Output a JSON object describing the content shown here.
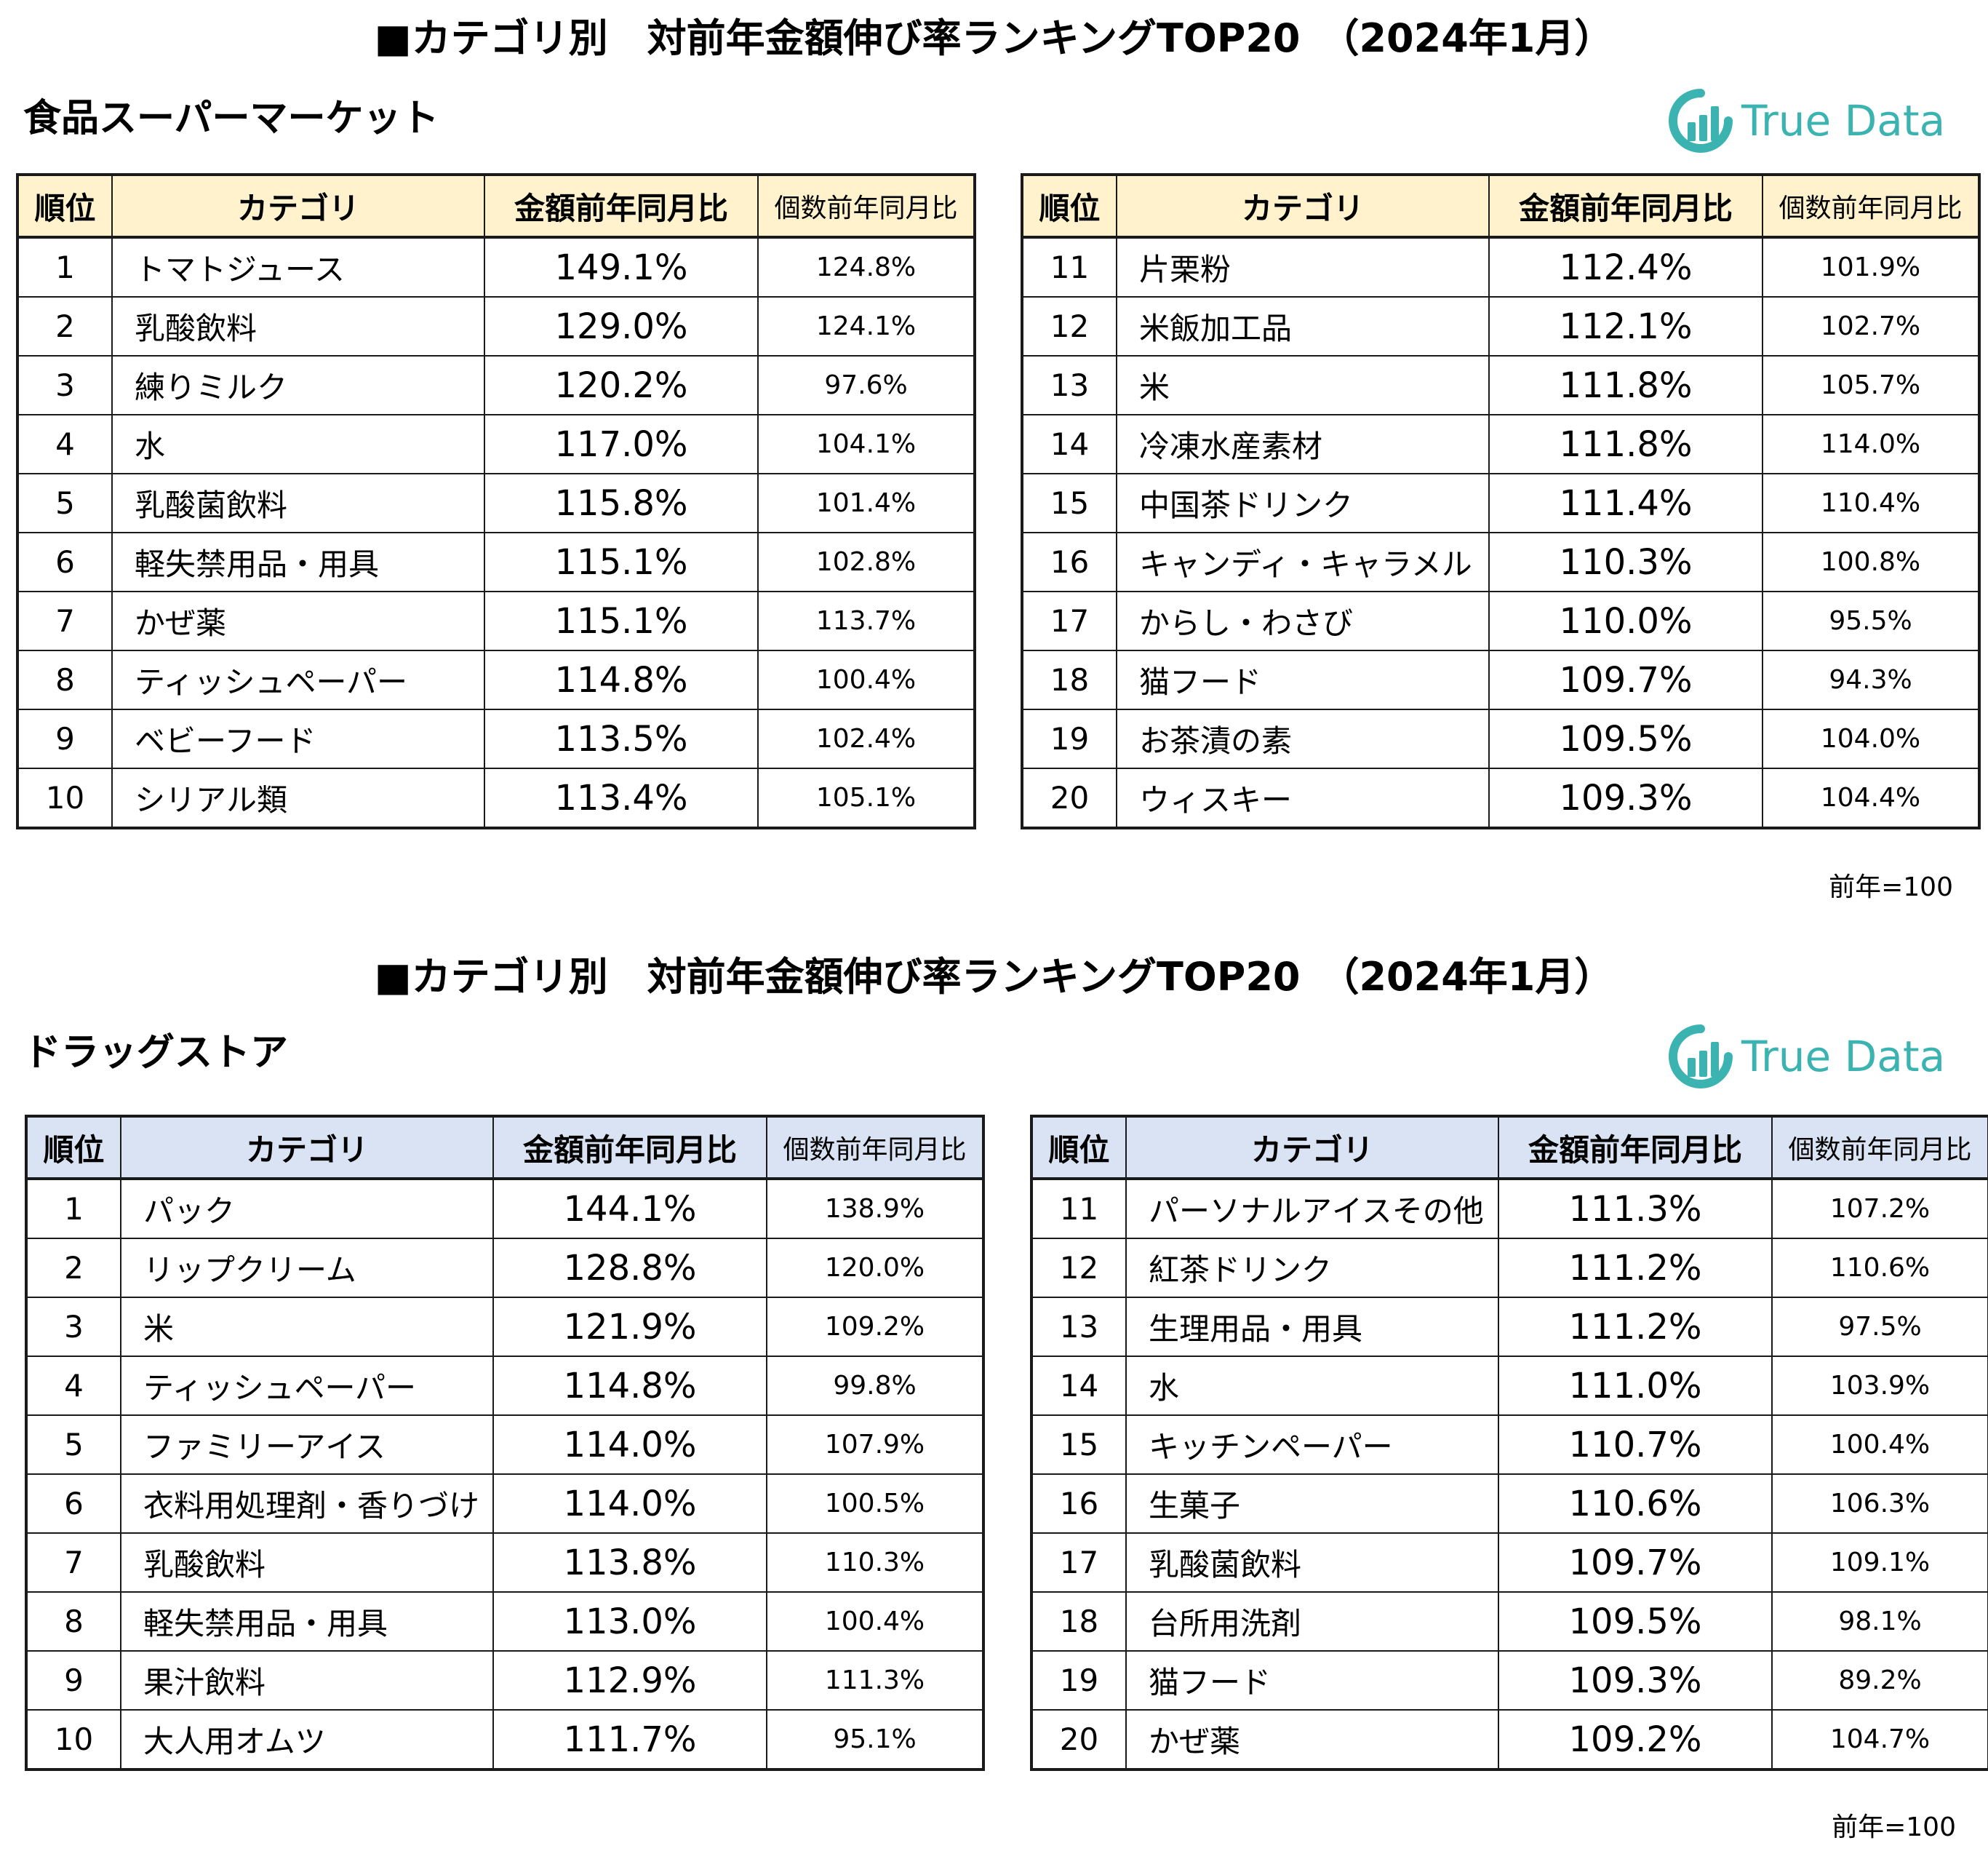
{
  "sections": [
    {
      "title": "■カテゴリ別　対前年金額伸び率ランキングTOP20　（2024年1月）",
      "label": "食品スーパーマーケット",
      "logo_text": "True Data",
      "headers": [
        "順位",
        "カテゴリ",
        "金額前年同月比",
        "個数前年同月比"
      ],
      "left_rows": [
        {
          "rank": "1",
          "category": "トマトジュース",
          "amount": "149.1%",
          "qty": "124.8%"
        },
        {
          "rank": "2",
          "category": "乳酸飲料",
          "amount": "129.0%",
          "qty": "124.1%"
        },
        {
          "rank": "3",
          "category": "練りミルク",
          "amount": "120.2%",
          "qty": "97.6%"
        },
        {
          "rank": "4",
          "category": "水",
          "amount": "117.0%",
          "qty": "104.1%"
        },
        {
          "rank": "5",
          "category": "乳酸菌飲料",
          "amount": "115.8%",
          "qty": "101.4%"
        },
        {
          "rank": "6",
          "category": "軽失禁用品・用具",
          "amount": "115.1%",
          "qty": "102.8%"
        },
        {
          "rank": "7",
          "category": "かぜ薬",
          "amount": "115.1%",
          "qty": "113.7%"
        },
        {
          "rank": "8",
          "category": "ティッシュペーパー",
          "amount": "114.8%",
          "qty": "100.4%"
        },
        {
          "rank": "9",
          "category": "ベビーフード",
          "amount": "113.5%",
          "qty": "102.4%"
        },
        {
          "rank": "10",
          "category": "シリアル類",
          "amount": "113.4%",
          "qty": "105.1%"
        }
      ],
      "right_rows": [
        {
          "rank": "11",
          "category": "片栗粉",
          "amount": "112.4%",
          "qty": "101.9%"
        },
        {
          "rank": "12",
          "category": "米飯加工品",
          "amount": "112.1%",
          "qty": "102.7%"
        },
        {
          "rank": "13",
          "category": "米",
          "amount": "111.8%",
          "qty": "105.7%"
        },
        {
          "rank": "14",
          "category": "冷凍水産素材",
          "amount": "111.8%",
          "qty": "114.0%"
        },
        {
          "rank": "15",
          "category": "中国茶ドリンク",
          "amount": "111.4%",
          "qty": "110.4%"
        },
        {
          "rank": "16",
          "category": "キャンディ・キャラメル",
          "amount": "110.3%",
          "qty": "100.8%"
        },
        {
          "rank": "17",
          "category": "からし・わさび",
          "amount": "110.0%",
          "qty": "95.5%"
        },
        {
          "rank": "18",
          "category": "猫フード",
          "amount": "109.7%",
          "qty": "94.3%"
        },
        {
          "rank": "19",
          "category": "お茶漬の素",
          "amount": "109.5%",
          "qty": "104.0%"
        },
        {
          "rank": "20",
          "category": "ウィスキー",
          "amount": "109.3%",
          "qty": "104.4%"
        }
      ],
      "note": "前年=100",
      "header_color": "#fff2cc"
    },
    {
      "title": "■カテゴリ別　対前年金額伸び率ランキングTOP20　（2024年1月）",
      "label": "ドラッグストア",
      "logo_text": "True Data",
      "headers": [
        "順位",
        "カテゴリ",
        "金額前年同月比",
        "個数前年同月比"
      ],
      "left_rows": [
        {
          "rank": "1",
          "category": "パック",
          "amount": "144.1%",
          "qty": "138.9%"
        },
        {
          "rank": "2",
          "category": "リップクリーム",
          "amount": "128.8%",
          "qty": "120.0%"
        },
        {
          "rank": "3",
          "category": "米",
          "amount": "121.9%",
          "qty": "109.2%"
        },
        {
          "rank": "4",
          "category": "ティッシュペーパー",
          "amount": "114.8%",
          "qty": "99.8%"
        },
        {
          "rank": "5",
          "category": "ファミリーアイス",
          "amount": "114.0%",
          "qty": "107.9%"
        },
        {
          "rank": "6",
          "category": "衣料用処理剤・香りづけ",
          "amount": "114.0%",
          "qty": "100.5%"
        },
        {
          "rank": "7",
          "category": "乳酸飲料",
          "amount": "113.8%",
          "qty": "110.3%"
        },
        {
          "rank": "8",
          "category": "軽失禁用品・用具",
          "amount": "113.0%",
          "qty": "100.4%"
        },
        {
          "rank": "9",
          "category": "果汁飲料",
          "amount": "112.9%",
          "qty": "111.3%"
        },
        {
          "rank": "10",
          "category": "大人用オムツ",
          "amount": "111.7%",
          "qty": "95.1%"
        }
      ],
      "right_rows": [
        {
          "rank": "11",
          "category": "パーソナルアイスその他",
          "amount": "111.3%",
          "qty": "107.2%"
        },
        {
          "rank": "12",
          "category": "紅茶ドリンク",
          "amount": "111.2%",
          "qty": "110.6%"
        },
        {
          "rank": "13",
          "category": "生理用品・用具",
          "amount": "111.2%",
          "qty": "97.5%"
        },
        {
          "rank": "14",
          "category": "水",
          "amount": "111.0%",
          "qty": "103.9%"
        },
        {
          "rank": "15",
          "category": "キッチンペーパー",
          "amount": "110.7%",
          "qty": "100.4%"
        },
        {
          "rank": "16",
          "category": "生菓子",
          "amount": "110.6%",
          "qty": "106.3%"
        },
        {
          "rank": "17",
          "category": "乳酸菌飲料",
          "amount": "109.7%",
          "qty": "109.1%"
        },
        {
          "rank": "18",
          "category": "台所用洗剤",
          "amount": "109.5%",
          "qty": "98.1%"
        },
        {
          "rank": "19",
          "category": "猫フード",
          "amount": "109.3%",
          "qty": "89.2%"
        },
        {
          "rank": "20",
          "category": "かぜ薬",
          "amount": "109.2%",
          "qty": "104.7%"
        }
      ],
      "note": "前年=100",
      "header_color": "#dae3f3"
    }
  ],
  "logo_icon": "true-data-logo-icon",
  "logo_color": "#3bb3b1"
}
